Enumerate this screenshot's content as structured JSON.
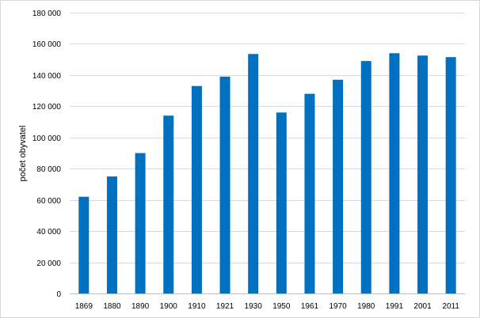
{
  "chart_data": {
    "type": "bar",
    "categories": [
      "1869",
      "1880",
      "1890",
      "1900",
      "1910",
      "1921",
      "1930",
      "1950",
      "1961",
      "1970",
      "1980",
      "1991",
      "2001",
      "2011"
    ],
    "values": [
      62000,
      75000,
      90000,
      114000,
      133000,
      139000,
      153500,
      116000,
      128000,
      137000,
      149000,
      154000,
      152500,
      151500
    ],
    "ylabel": "počet obyvatel",
    "xlabel": "",
    "ylim": [
      0,
      180000
    ],
    "yticks": [
      0,
      20000,
      40000,
      60000,
      80000,
      100000,
      120000,
      140000,
      160000,
      180000
    ],
    "ytick_labels": [
      "0",
      "20 000",
      "40 000",
      "60 000",
      "80 000",
      "100 000",
      "120 000",
      "140 000",
      "160 000",
      "180 000"
    ],
    "grid": true,
    "legend": "none",
    "bar_color": "#0070c0"
  }
}
